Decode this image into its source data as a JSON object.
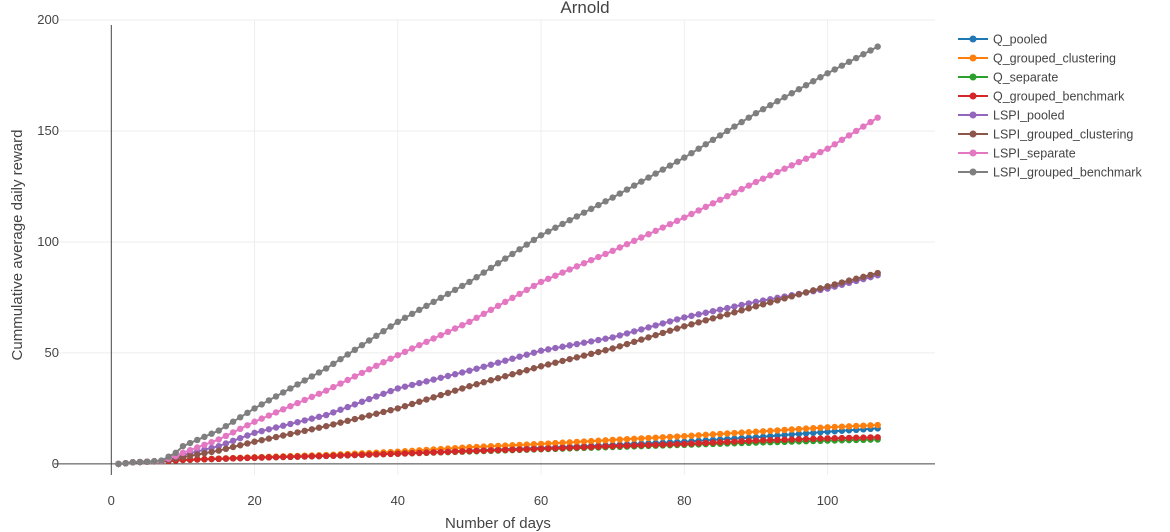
{
  "chart_data": {
    "type": "line",
    "title": "Arnold",
    "xlabel": "Number of days",
    "ylabel": "Cummulative average daily reward",
    "xlim": [
      -8,
      115
    ],
    "ylim": [
      -5,
      200
    ],
    "xticks": [
      0,
      20,
      40,
      60,
      80,
      100
    ],
    "yticks": [
      0,
      50,
      100,
      150,
      200
    ],
    "grid": true,
    "legend_position": "top-right",
    "markers": true,
    "series": [
      {
        "name": "Q_pooled",
        "color": "#1f77b4",
        "points": [
          [
            1,
            0
          ],
          [
            2,
            0.3
          ],
          [
            3,
            0.7
          ],
          [
            5,
            1.0
          ],
          [
            8,
            1.3
          ],
          [
            10,
            1.8
          ],
          [
            20,
            2.8
          ],
          [
            30,
            3.6
          ],
          [
            40,
            4.7
          ],
          [
            50,
            6.0
          ],
          [
            60,
            7.2
          ],
          [
            70,
            8.5
          ],
          [
            80,
            10.0
          ],
          [
            90,
            12.0
          ],
          [
            100,
            14.5
          ],
          [
            107,
            16.0
          ]
        ]
      },
      {
        "name": "Q_grouped_clustering",
        "color": "#ff7f0e",
        "points": [
          [
            1,
            0
          ],
          [
            2,
            0.3
          ],
          [
            3,
            0.7
          ],
          [
            5,
            1.0
          ],
          [
            8,
            1.3
          ],
          [
            10,
            1.8
          ],
          [
            20,
            3.0
          ],
          [
            30,
            4.0
          ],
          [
            40,
            5.5
          ],
          [
            50,
            7.5
          ],
          [
            60,
            9.0
          ],
          [
            70,
            10.8
          ],
          [
            80,
            12.5
          ],
          [
            90,
            14.5
          ],
          [
            100,
            16.5
          ],
          [
            107,
            17.5
          ]
        ]
      },
      {
        "name": "Q_separate",
        "color": "#2ca02c",
        "points": [
          [
            1,
            0
          ],
          [
            2,
            0.3
          ],
          [
            3,
            0.7
          ],
          [
            5,
            1.0
          ],
          [
            8,
            1.3
          ],
          [
            10,
            1.8
          ],
          [
            20,
            2.8
          ],
          [
            30,
            3.6
          ],
          [
            40,
            4.6
          ],
          [
            50,
            5.6
          ],
          [
            60,
            6.6
          ],
          [
            70,
            7.6
          ],
          [
            80,
            8.6
          ],
          [
            90,
            9.6
          ],
          [
            100,
            10.5
          ],
          [
            107,
            11.0
          ]
        ]
      },
      {
        "name": "Q_grouped_benchmark",
        "color": "#d62728",
        "points": [
          [
            1,
            0
          ],
          [
            2,
            0.3
          ],
          [
            3,
            0.7
          ],
          [
            5,
            1.0
          ],
          [
            8,
            1.3
          ],
          [
            10,
            1.8
          ],
          [
            20,
            2.8
          ],
          [
            30,
            3.6
          ],
          [
            40,
            4.6
          ],
          [
            50,
            5.8
          ],
          [
            60,
            6.8
          ],
          [
            70,
            8.0
          ],
          [
            80,
            9.0
          ],
          [
            90,
            10.5
          ],
          [
            100,
            11.5
          ],
          [
            107,
            12.0
          ]
        ]
      },
      {
        "name": "LSPI_pooled",
        "color": "#9467bd",
        "points": [
          [
            1,
            0
          ],
          [
            2,
            0.3
          ],
          [
            3,
            0.7
          ],
          [
            5,
            1.0
          ],
          [
            7,
            1.3
          ],
          [
            9,
            2.5
          ],
          [
            10,
            4.0
          ],
          [
            15,
            8.0
          ],
          [
            20,
            14.0
          ],
          [
            30,
            22.0
          ],
          [
            40,
            34.0
          ],
          [
            50,
            42.0
          ],
          [
            60,
            51.0
          ],
          [
            70,
            57.0
          ],
          [
            80,
            66.0
          ],
          [
            90,
            73.0
          ],
          [
            100,
            79.0
          ],
          [
            107,
            85.0
          ]
        ]
      },
      {
        "name": "LSPI_grouped_clustering",
        "color": "#8c564b",
        "points": [
          [
            1,
            0
          ],
          [
            2,
            0.3
          ],
          [
            3,
            0.7
          ],
          [
            5,
            1.0
          ],
          [
            7,
            1.3
          ],
          [
            9,
            2.5
          ],
          [
            10,
            3.0
          ],
          [
            15,
            6.0
          ],
          [
            20,
            10.0
          ],
          [
            30,
            17.0
          ],
          [
            40,
            25.0
          ],
          [
            50,
            35.0
          ],
          [
            60,
            44.0
          ],
          [
            70,
            52.0
          ],
          [
            80,
            62.0
          ],
          [
            90,
            71.0
          ],
          [
            100,
            80.0
          ],
          [
            107,
            86.0
          ]
        ]
      },
      {
        "name": "LSPI_separate",
        "color": "#e377c2",
        "points": [
          [
            1,
            0
          ],
          [
            2,
            0.3
          ],
          [
            3,
            0.7
          ],
          [
            5,
            1.0
          ],
          [
            7,
            1.3
          ],
          [
            9,
            3.5
          ],
          [
            10,
            5.0
          ],
          [
            15,
            11.0
          ],
          [
            20,
            19.0
          ],
          [
            30,
            33.0
          ],
          [
            40,
            49.0
          ],
          [
            50,
            64.0
          ],
          [
            60,
            82.0
          ],
          [
            70,
            96.0
          ],
          [
            80,
            111.0
          ],
          [
            90,
            127.0
          ],
          [
            100,
            142.0
          ],
          [
            107,
            156.0
          ]
        ]
      },
      {
        "name": "LSPI_grouped_benchmark",
        "color": "#7f7f7f",
        "points": [
          [
            1,
            0
          ],
          [
            2,
            0.3
          ],
          [
            3,
            0.7
          ],
          [
            5,
            1.0
          ],
          [
            7,
            1.5
          ],
          [
            9,
            5.0
          ],
          [
            10,
            8.0
          ],
          [
            15,
            15.0
          ],
          [
            20,
            25.0
          ],
          [
            30,
            43.0
          ],
          [
            40,
            64.0
          ],
          [
            50,
            82.0
          ],
          [
            60,
            103.0
          ],
          [
            70,
            120.0
          ],
          [
            80,
            138.0
          ],
          [
            90,
            158.0
          ],
          [
            100,
            176.0
          ],
          [
            107,
            188.0
          ]
        ]
      }
    ]
  }
}
